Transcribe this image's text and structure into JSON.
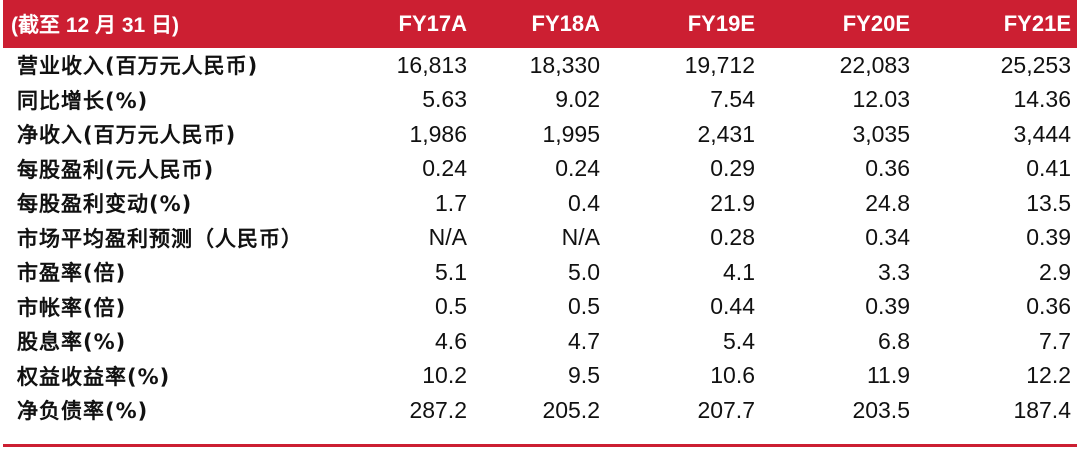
{
  "table": {
    "header": {
      "label": "(截至 12 月 31 日)",
      "columns": [
        "FY17A",
        "FY18A",
        "FY19E",
        "FY20E",
        "FY21E"
      ]
    },
    "rows": [
      {
        "label": "营业收入(百万元人民币)",
        "values": [
          "16,813",
          "18,330",
          "19,712",
          "22,083",
          "25,253"
        ]
      },
      {
        "label": "同比增长(%)",
        "values": [
          "5.63",
          "9.02",
          "7.54",
          "12.03",
          "14.36"
        ]
      },
      {
        "label": "净收入(百万元人民币)",
        "values": [
          "1,986",
          "1,995",
          "2,431",
          "3,035",
          "3,444"
        ]
      },
      {
        "label": "每股盈利(元人民币)",
        "values": [
          "0.24",
          "0.24",
          "0.29",
          "0.36",
          "0.41"
        ]
      },
      {
        "label": "每股盈利变动(%)",
        "values": [
          "1.7",
          "0.4",
          "21.9",
          "24.8",
          "13.5"
        ]
      },
      {
        "label": "市场平均盈利预测（人民币）",
        "values": [
          "N/A",
          "N/A",
          "0.28",
          "0.34",
          "0.39"
        ]
      },
      {
        "label": "市盈率(倍)",
        "values": [
          "5.1",
          "5.0",
          "4.1",
          "3.3",
          "2.9"
        ]
      },
      {
        "label": "市帐率(倍)",
        "values": [
          "0.5",
          "0.5",
          "0.44",
          "0.39",
          "0.36"
        ]
      },
      {
        "label": "股息率(%)",
        "values": [
          "4.6",
          "4.7",
          "5.4",
          "6.8",
          "7.7"
        ]
      },
      {
        "label": "权益收益率(%)",
        "values": [
          "10.2",
          "9.5",
          "10.6",
          "11.9",
          "12.2"
        ]
      },
      {
        "label": "净负债率(%)",
        "values": [
          "287.2",
          "205.2",
          "207.7",
          "203.5",
          "187.4"
        ]
      }
    ]
  },
  "colors": {
    "header_bg": "#cc1f32",
    "header_text": "#ffffff",
    "body_text": "#111111",
    "rule": "#cc1f32"
  }
}
